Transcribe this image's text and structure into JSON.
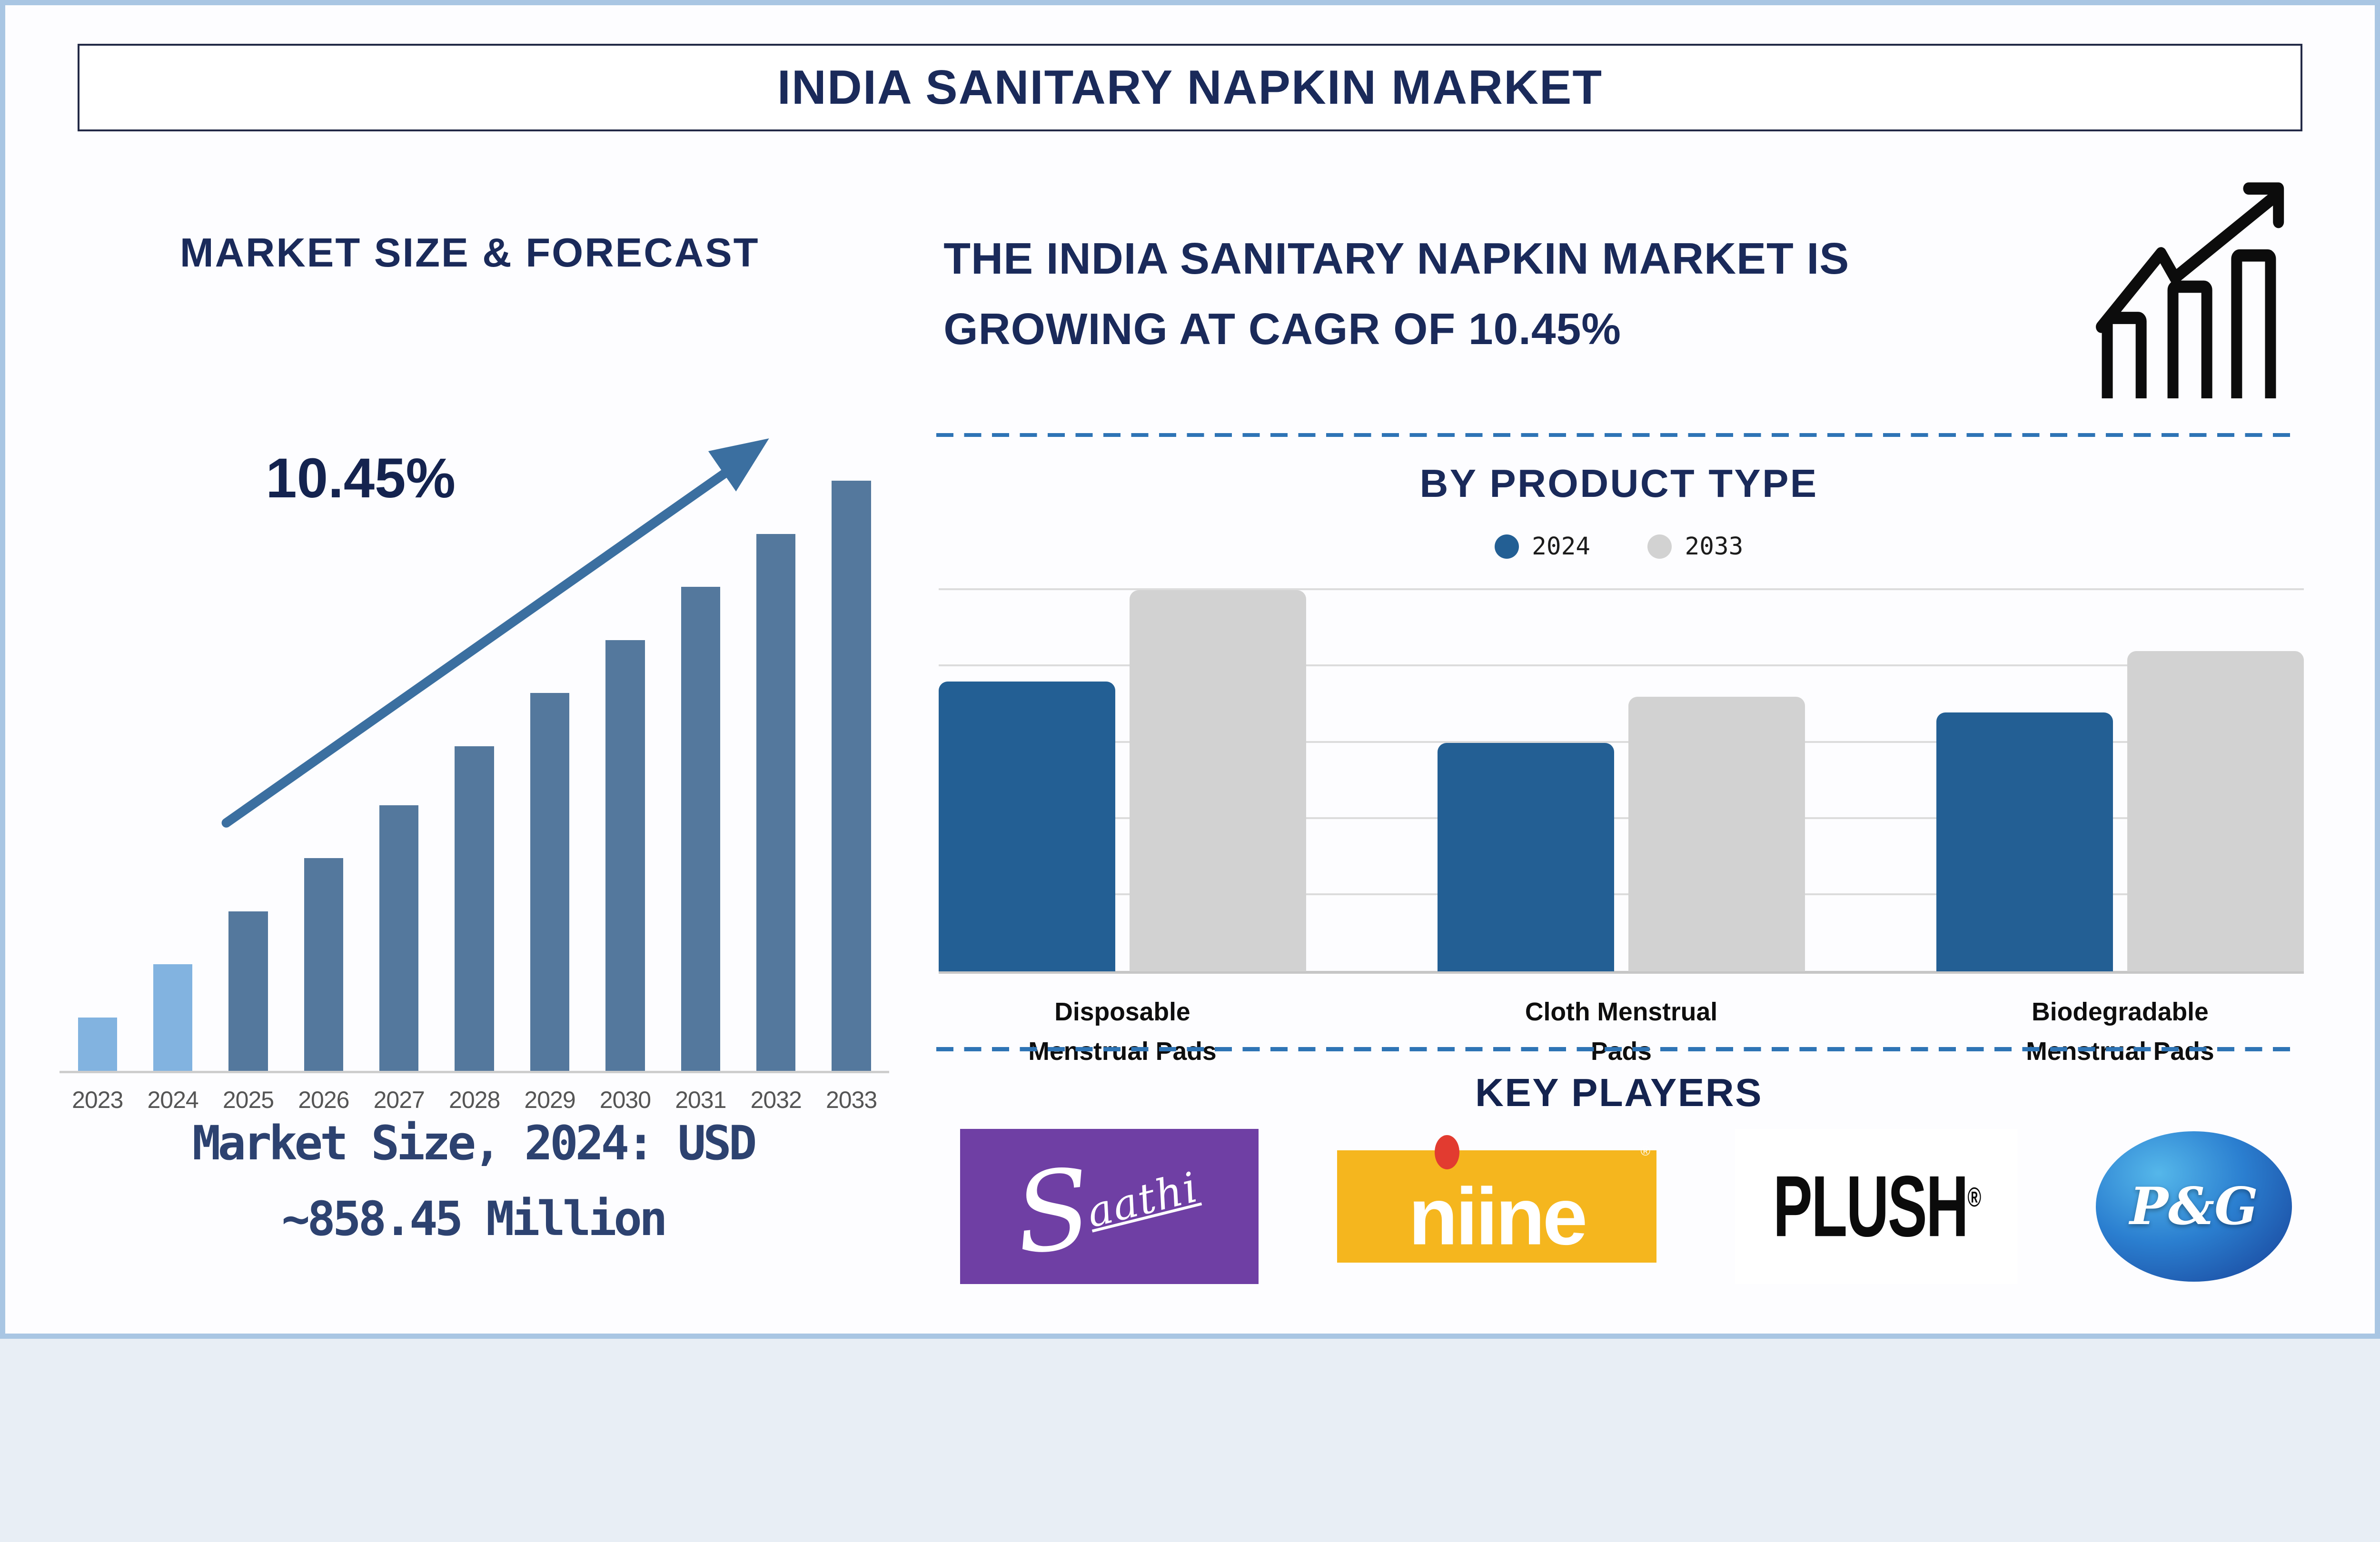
{
  "header": {
    "title": "INDIA SANITARY NAPKIN MARKET"
  },
  "left_panel": {
    "heading": "MARKET SIZE & FORECAST",
    "cagr_annotation": "10.45%",
    "market_size_line1": "Market Size, 2024: USD",
    "market_size_line2": "~858.45 Million"
  },
  "right_panel": {
    "headline_line1": "THE INDIA SANITARY NAPKIN MARKET IS",
    "headline_line2": "GROWING AT CAGR OF 10.45%",
    "by_product_heading": "BY PRODUCT TYPE",
    "key_players_heading": "KEY PLAYERS"
  },
  "key_players": {
    "saathi": {
      "name": "Saathi",
      "initial": "S",
      "rest": "aathi",
      "bg_color": "#6f3fa4"
    },
    "niine": {
      "name": "Niine",
      "display": "niine",
      "reg_mark": "®",
      "bg_color": "#f5b61e",
      "dot_color": "#e23b30"
    },
    "plush": {
      "name": "Plush",
      "display": "PLUSH",
      "reg_mark": "®"
    },
    "pg": {
      "name": "P&G",
      "display": "P&G",
      "bg_color_light": "#55b7ea",
      "bg_color_dark": "#173f96"
    }
  },
  "colors": {
    "accent_navy": "#1a2a5a",
    "arrow_blue": "#3b6fa0",
    "dashed_line_blue": "#2e74b5",
    "frame_light_blue": "#a9c6e3"
  },
  "chart_data": [
    {
      "type": "bar",
      "title": "MARKET SIZE & FORECAST",
      "categories": [
        "2023",
        "2024",
        "2025",
        "2026",
        "2027",
        "2028",
        "2029",
        "2030",
        "2031",
        "2032",
        "2033"
      ],
      "values_pct_of_max": [
        9,
        18,
        27,
        36,
        45,
        55,
        64,
        73,
        82,
        91,
        100
      ],
      "unit": "USD Million",
      "known_values": {
        "2024": 858.45
      },
      "cagr_pct": 10.45,
      "annotation": "10.45%",
      "highlight_categories": [
        "2023",
        "2024"
      ],
      "bar_color_highlight": "#82b3e0",
      "bar_color": "#54789d",
      "xlabel": "",
      "ylabel": "",
      "grid": false,
      "legend_position": "none"
    },
    {
      "type": "bar",
      "title": "BY PRODUCT TYPE",
      "categories": [
        "Disposable\nMenstrual Pads",
        "Cloth Menstrual\nPads",
        "Biodegradable\nMenstrual Pads"
      ],
      "series": [
        {
          "name": "2024",
          "color": "#235f94",
          "values_pct_of_max": [
            76,
            60,
            68
          ]
        },
        {
          "name": "2033",
          "color": "#d2d2d2",
          "values_pct_of_max": [
            100,
            72,
            84
          ]
        }
      ],
      "xlabel": "",
      "ylabel": "",
      "grid": true,
      "gridline_divisions": 5,
      "legend_position": "top"
    }
  ]
}
